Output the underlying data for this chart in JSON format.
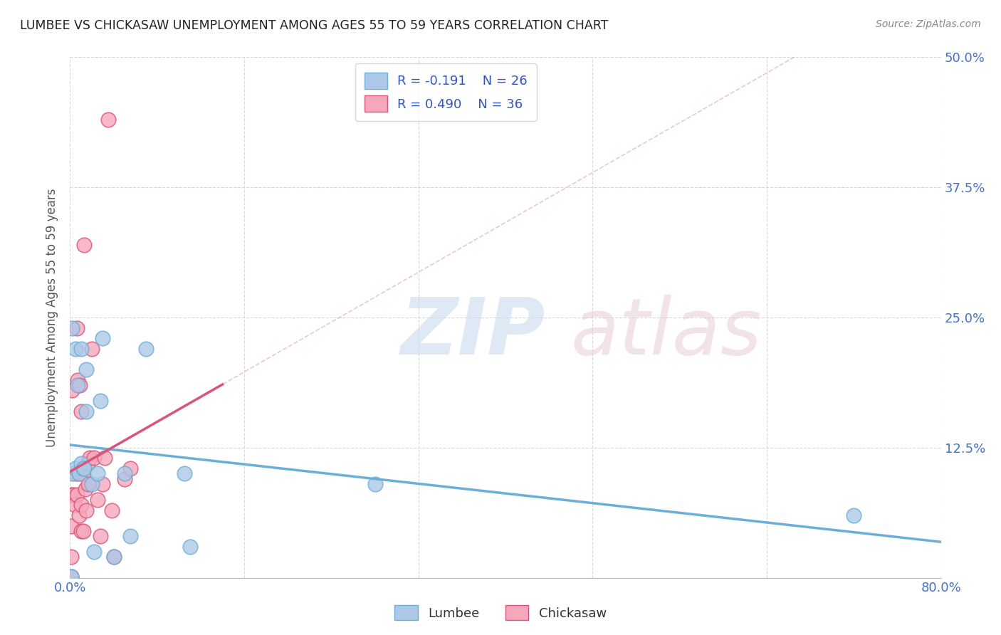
{
  "title": "LUMBEE VS CHICKASAW UNEMPLOYMENT AMONG AGES 55 TO 59 YEARS CORRELATION CHART",
  "source": "Source: ZipAtlas.com",
  "ylabel": "Unemployment Among Ages 55 to 59 years",
  "xlim": [
    0.0,
    0.8
  ],
  "ylim": [
    0.0,
    0.5
  ],
  "xticks": [
    0.0,
    0.16,
    0.32,
    0.48,
    0.64,
    0.8
  ],
  "yticks_right": [
    0.0,
    0.125,
    0.25,
    0.375,
    0.5
  ],
  "yticklabels_right": [
    "",
    "12.5%",
    "25.0%",
    "37.5%",
    "50.0%"
  ],
  "lumbee_R": -0.191,
  "lumbee_N": 26,
  "chickasaw_R": 0.49,
  "chickasaw_N": 36,
  "lumbee_color": "#adc8e8",
  "chickasaw_color": "#f5a8bc",
  "lumbee_line_color": "#6baed6",
  "chickasaw_line_color": "#d9547a",
  "lumbee_x": [
    0.001,
    0.002,
    0.002,
    0.005,
    0.005,
    0.007,
    0.008,
    0.01,
    0.01,
    0.012,
    0.013,
    0.015,
    0.015,
    0.02,
    0.022,
    0.025,
    0.028,
    0.03,
    0.04,
    0.05,
    0.055,
    0.07,
    0.105,
    0.11,
    0.28,
    0.72
  ],
  "lumbee_y": [
    0.001,
    0.1,
    0.24,
    0.105,
    0.22,
    0.185,
    0.1,
    0.22,
    0.11,
    0.105,
    0.105,
    0.2,
    0.16,
    0.09,
    0.025,
    0.1,
    0.17,
    0.23,
    0.02,
    0.1,
    0.04,
    0.22,
    0.1,
    0.03,
    0.09,
    0.06
  ],
  "chickasaw_x": [
    0.001,
    0.001,
    0.001,
    0.001,
    0.002,
    0.003,
    0.004,
    0.005,
    0.006,
    0.006,
    0.007,
    0.008,
    0.008,
    0.009,
    0.01,
    0.01,
    0.01,
    0.012,
    0.012,
    0.013,
    0.014,
    0.015,
    0.016,
    0.017,
    0.018,
    0.02,
    0.022,
    0.025,
    0.028,
    0.03,
    0.032,
    0.035,
    0.038,
    0.04,
    0.05,
    0.055
  ],
  "chickasaw_y": [
    0.001,
    0.02,
    0.05,
    0.08,
    0.18,
    0.08,
    0.07,
    0.1,
    0.24,
    0.08,
    0.19,
    0.1,
    0.06,
    0.185,
    0.16,
    0.07,
    0.045,
    0.1,
    0.045,
    0.32,
    0.085,
    0.065,
    0.11,
    0.09,
    0.115,
    0.22,
    0.115,
    0.075,
    0.04,
    0.09,
    0.115,
    0.44,
    0.065,
    0.02,
    0.095,
    0.105
  ],
  "bg_color": "#ffffff",
  "grid_color": "#d8d8d8"
}
